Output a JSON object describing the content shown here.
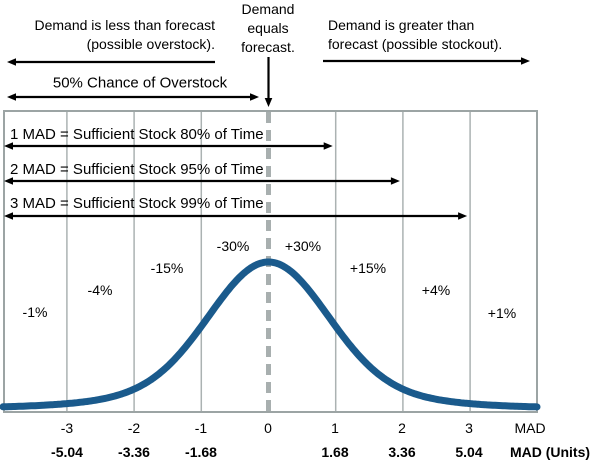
{
  "annotations": {
    "less": {
      "line1": "Demand is less than forecast",
      "line2": "(possible overstock)."
    },
    "equals": {
      "line1": "Demand",
      "line2": "equals",
      "line3": "forecast."
    },
    "greater": {
      "line1": "Demand is greater than",
      "line2": "forecast (possible stockout)."
    },
    "overstock_chance": "50% Chance of Overstock"
  },
  "mad_rows": [
    {
      "label": "1 MAD = Sufficient Stock 80% of Time"
    },
    {
      "label": "2 MAD = Sufficient Stock 95% of Time"
    },
    {
      "label": "3 MAD = Sufficient Stock 99% of Time"
    }
  ],
  "band_labels": [
    "-1%",
    "-4%",
    "-15%",
    "-30%",
    "+30%",
    "+15%",
    "+4%",
    "+1%"
  ],
  "axis": {
    "mad_row": {
      "ticks": [
        "-3",
        "-2",
        "-1",
        "0",
        "1",
        "2",
        "3"
      ],
      "label": "MAD"
    },
    "units_row": {
      "ticks": [
        "-5.04",
        "-3.36",
        "-1.68",
        "1.68",
        "3.36",
        "5.04"
      ],
      "label": "MAD (Units)"
    }
  },
  "colors": {
    "curve": "#1A5A8C",
    "grid": "#ABB2B2",
    "border": "#9CA4A4",
    "dashed_center": "#A8AFAF",
    "arrow": "#000000"
  },
  "chart_data": {
    "type": "area",
    "title": "",
    "curve": "normal distribution of demand error around forecast (bell curve centered at 0 MAD)",
    "x_mad_ticks": [
      -3,
      -2,
      -1,
      0,
      1,
      2,
      3
    ],
    "x_units_ticks": [
      -5.04,
      -3.36,
      -1.68,
      1.68,
      3.36,
      5.04
    ],
    "units_per_mad": 1.68,
    "xlabel_row1": "MAD",
    "xlabel_row2": "MAD (Units)",
    "band_percent": {
      "categories": [
        "below -3 MAD",
        "-3 to -2 MAD",
        "-2 to -1 MAD",
        "-1 to 0 MAD",
        "0 to 1 MAD",
        "1 to 2 MAD",
        "2 to 3 MAD",
        "above 3 MAD"
      ],
      "values": [
        1,
        4,
        15,
        30,
        30,
        15,
        4,
        1
      ]
    },
    "cumulative_service_levels": [
      {
        "mad": 1,
        "sufficient_stock_percent": 80
      },
      {
        "mad": 2,
        "sufficient_stock_percent": 95
      },
      {
        "mad": 3,
        "sufficient_stock_percent": 99
      }
    ],
    "overstock_chance_percent": 50,
    "legend": "off",
    "grid": "vertical gridlines at each whole MAD"
  }
}
